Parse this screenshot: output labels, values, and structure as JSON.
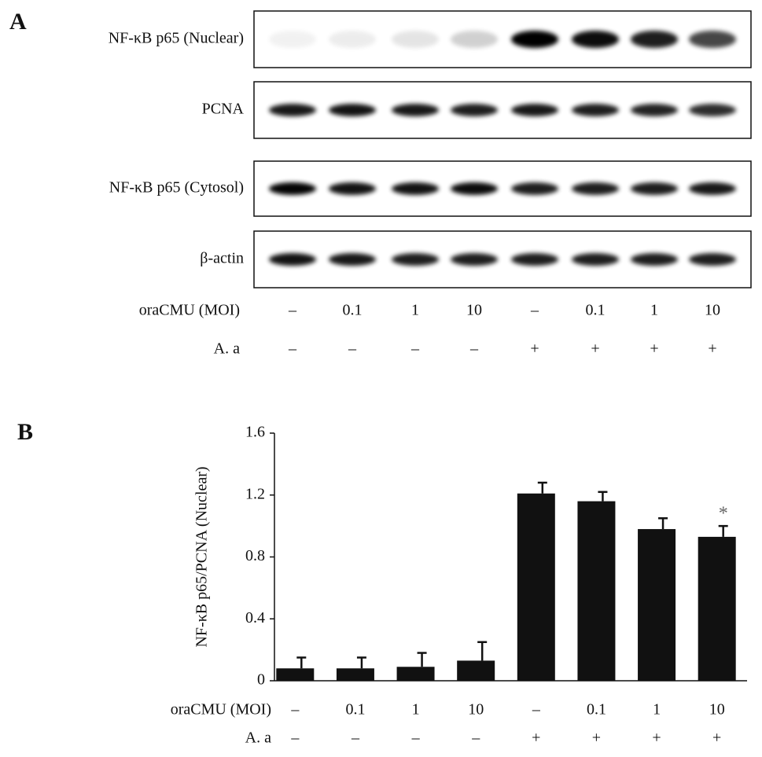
{
  "blot": {
    "panel_label": "A",
    "rows": [
      "NF-κB p65 (Nuclear)",
      "PCNA",
      "NF-κB p65 (Cytosol)",
      "β-actin"
    ],
    "condition_titles": [
      "oraCMU (MOI)",
      "A. a"
    ],
    "moi": [
      "–",
      "0.1",
      "1",
      "10",
      "–",
      "0.1",
      "1",
      "10"
    ],
    "aa": [
      "–",
      "–",
      "–",
      "–",
      "+",
      "+",
      "+",
      "+"
    ]
  },
  "chart_data": {
    "type": "bar",
    "panel_label": "B",
    "y_label": "NF-κB p65/PCNA (Nuclear)",
    "categories": [
      "–",
      "0.1",
      "1",
      "10",
      "–",
      "0.1",
      "1",
      "10"
    ],
    "group_labels": [
      "–",
      "–",
      "–",
      "–",
      "+",
      "+",
      "+",
      "+"
    ],
    "row_titles": [
      "oraCMU (MOI)",
      "A. a"
    ],
    "values": [
      0.08,
      0.08,
      0.09,
      0.13,
      1.21,
      1.16,
      0.98,
      0.93
    ],
    "errors": [
      0.07,
      0.07,
      0.09,
      0.12,
      0.07,
      0.06,
      0.07,
      0.07
    ],
    "color": "#111111",
    "ylim": [
      0,
      1.6
    ],
    "yticks": [
      0,
      0.4,
      0.8,
      1.2,
      1.6
    ],
    "annotation": "*"
  }
}
